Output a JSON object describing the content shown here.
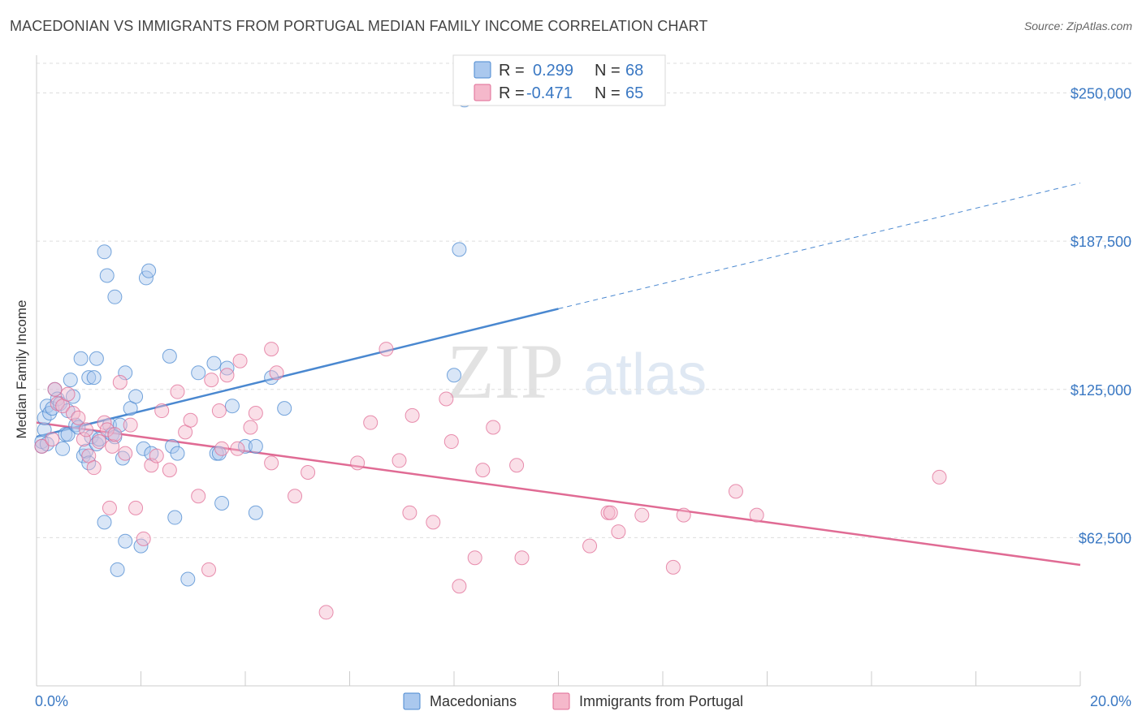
{
  "header": {
    "title": "MACEDONIAN VS IMMIGRANTS FROM PORTUGAL MEDIAN FAMILY INCOME CORRELATION CHART",
    "source": "Source: ZipAtlas.com"
  },
  "watermark": {
    "zip": "ZIP",
    "atlas": "atlas"
  },
  "legend_top": {
    "rows": [
      {
        "r_label": "R =",
        "r_value": "0.299",
        "n_label": "N =",
        "n_value": "68",
        "color": "#aac8ee"
      },
      {
        "r_label": "R =",
        "r_value": "-0.471",
        "n_label": "N =",
        "n_value": "65",
        "color": "#f5b8cb"
      }
    ]
  },
  "legend_bottom": {
    "items": [
      {
        "label": "Macedonians",
        "color": "#aac8ee"
      },
      {
        "label": "Immigrants from Portugal",
        "color": "#f5b8cb"
      }
    ]
  },
  "chart_data": {
    "type": "scatter",
    "title": "MACEDONIAN VS IMMIGRANTS FROM PORTUGAL MEDIAN FAMILY INCOME CORRELATION CHART",
    "xlabel": "",
    "ylabel": "Median Family Income",
    "xlim": [
      0,
      20
    ],
    "ylim": [
      0,
      262500
    ],
    "x_tick_labels": [
      "0.0%",
      "20.0%"
    ],
    "y_ticks": [
      62500,
      125000,
      187500,
      250000
    ],
    "y_tick_labels": [
      "$62,500",
      "$125,000",
      "$187,500",
      "$250,000"
    ],
    "grid": true,
    "legend_position": "top-center",
    "series": [
      {
        "name": "Macedonians",
        "color": "#4a88d0",
        "fill": "#aac8ee",
        "r": 0.299,
        "n": 68,
        "trend": {
          "x0": 0,
          "y0": 105000,
          "x1": 10,
          "y1": 159000,
          "dash_to_x": 20,
          "dash_to_y": 212000
        },
        "points": [
          [
            0.1,
            101000
          ],
          [
            0.1,
            103000
          ],
          [
            0.15,
            108000
          ],
          [
            0.15,
            113000
          ],
          [
            0.2,
            118000
          ],
          [
            0.25,
            115000
          ],
          [
            0.3,
            117000
          ],
          [
            0.35,
            125000
          ],
          [
            0.4,
            121000
          ],
          [
            0.45,
            119000
          ],
          [
            0.5,
            100000
          ],
          [
            0.55,
            106000
          ],
          [
            0.6,
            106000
          ],
          [
            0.65,
            129000
          ],
          [
            0.7,
            122000
          ],
          [
            0.75,
            110000
          ],
          [
            0.8,
            109000
          ],
          [
            0.85,
            138000
          ],
          [
            0.9,
            97000
          ],
          [
            0.95,
            99000
          ],
          [
            1.0,
            130000
          ],
          [
            1.0,
            94000
          ],
          [
            1.05,
            105000
          ],
          [
            1.1,
            130000
          ],
          [
            1.15,
            102000
          ],
          [
            1.15,
            138000
          ],
          [
            1.2,
            104000
          ],
          [
            1.3,
            183000
          ],
          [
            1.3,
            69000
          ],
          [
            1.35,
            173000
          ],
          [
            1.4,
            110000
          ],
          [
            1.45,
            106000
          ],
          [
            1.5,
            105000
          ],
          [
            1.5,
            164000
          ],
          [
            1.55,
            49000
          ],
          [
            1.6,
            110000
          ],
          [
            1.65,
            96000
          ],
          [
            1.7,
            61000
          ],
          [
            1.7,
            132000
          ],
          [
            1.8,
            117000
          ],
          [
            1.9,
            122000
          ],
          [
            2.0,
            59000
          ],
          [
            2.05,
            100000
          ],
          [
            2.1,
            172000
          ],
          [
            2.15,
            175000
          ],
          [
            2.2,
            98000
          ],
          [
            2.55,
            139000
          ],
          [
            2.6,
            101000
          ],
          [
            2.65,
            71000
          ],
          [
            2.7,
            98000
          ],
          [
            2.9,
            45000
          ],
          [
            3.1,
            132000
          ],
          [
            3.4,
            136000
          ],
          [
            3.45,
            98000
          ],
          [
            3.5,
            98000
          ],
          [
            3.55,
            77000
          ],
          [
            3.65,
            134000
          ],
          [
            3.75,
            118000
          ],
          [
            4.0,
            101000
          ],
          [
            4.2,
            101000
          ],
          [
            4.2,
            73000
          ],
          [
            4.5,
            130000
          ],
          [
            4.75,
            117000
          ],
          [
            8.0,
            131000
          ],
          [
            8.1,
            184000
          ],
          [
            8.2,
            247000
          ],
          [
            0.2,
            102000
          ],
          [
            0.6,
            116000
          ]
        ]
      },
      {
        "name": "Immigrants from Portugal",
        "color": "#e06b94",
        "fill": "#f5b8cb",
        "r": -0.471,
        "n": 65,
        "trend": {
          "x0": 0,
          "y0": 111000,
          "x1": 20,
          "y1": 51000
        },
        "points": [
          [
            0.1,
            101000
          ],
          [
            0.3,
            104000
          ],
          [
            0.35,
            125000
          ],
          [
            0.4,
            119000
          ],
          [
            0.5,
            118000
          ],
          [
            0.6,
            123000
          ],
          [
            0.7,
            115000
          ],
          [
            0.8,
            113000
          ],
          [
            0.9,
            104000
          ],
          [
            0.95,
            108000
          ],
          [
            1.0,
            97000
          ],
          [
            1.1,
            92000
          ],
          [
            1.2,
            103000
          ],
          [
            1.3,
            111000
          ],
          [
            1.35,
            108000
          ],
          [
            1.4,
            75000
          ],
          [
            1.45,
            101000
          ],
          [
            1.5,
            106000
          ],
          [
            1.6,
            128000
          ],
          [
            1.7,
            98000
          ],
          [
            1.8,
            110000
          ],
          [
            1.9,
            75000
          ],
          [
            2.05,
            62000
          ],
          [
            2.2,
            93000
          ],
          [
            2.3,
            97000
          ],
          [
            2.4,
            116000
          ],
          [
            2.55,
            91000
          ],
          [
            2.7,
            124000
          ],
          [
            2.85,
            107000
          ],
          [
            2.95,
            112000
          ],
          [
            3.1,
            80000
          ],
          [
            3.3,
            49000
          ],
          [
            3.35,
            129000
          ],
          [
            3.5,
            116000
          ],
          [
            3.55,
            100000
          ],
          [
            3.65,
            131000
          ],
          [
            3.85,
            100000
          ],
          [
            3.9,
            137000
          ],
          [
            4.1,
            109000
          ],
          [
            4.2,
            115000
          ],
          [
            4.5,
            94000
          ],
          [
            4.5,
            142000
          ],
          [
            4.6,
            132000
          ],
          [
            4.95,
            80000
          ],
          [
            5.2,
            90000
          ],
          [
            5.55,
            31000
          ],
          [
            6.15,
            94000
          ],
          [
            6.4,
            111000
          ],
          [
            6.7,
            142000
          ],
          [
            6.95,
            95000
          ],
          [
            7.15,
            73000
          ],
          [
            7.2,
            114000
          ],
          [
            7.6,
            69000
          ],
          [
            7.85,
            121000
          ],
          [
            7.95,
            103000
          ],
          [
            8.1,
            42000
          ],
          [
            8.4,
            54000
          ],
          [
            8.55,
            91000
          ],
          [
            8.75,
            109000
          ],
          [
            9.2,
            93000
          ],
          [
            9.3,
            54000
          ],
          [
            10.6,
            59000
          ],
          [
            10.95,
            73000
          ],
          [
            11.15,
            65000
          ],
          [
            11.6,
            72000
          ]
        ]
      }
    ],
    "extra_pink_points": [
      [
        11.0,
        73000
      ],
      [
        12.2,
        50000
      ],
      [
        12.4,
        72000
      ],
      [
        13.4,
        82000
      ],
      [
        13.8,
        72000
      ],
      [
        17.3,
        88000
      ]
    ]
  }
}
